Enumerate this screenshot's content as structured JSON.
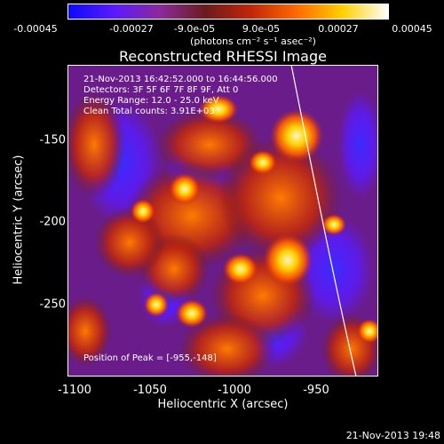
{
  "colorbar": {
    "ticks": [
      "-0.00045",
      "-0.00027",
      "-9.0e-05",
      "9.0e-05",
      "0.00027",
      "0.00045"
    ],
    "units": "(photons cm⁻² s⁻¹ asec⁻²)",
    "colors": [
      "#0a0aff",
      "#5a1aff",
      "#8b2a9a",
      "#6b1c1c",
      "#c2260a",
      "#ff6a00",
      "#ffd000",
      "#ffffff"
    ]
  },
  "title": "Reconstructed RHESSI Image",
  "info": {
    "time_range": "21-Nov-2013 16:42:52.000 to 16:44:56.000",
    "detectors": "Detectors: 3F 5F 6F 7F 8F 9F, Att 0",
    "energy": "Energy Range: 12.0 - 25.0 keV",
    "clean": "Clean    Total counts: 3.91E+03"
  },
  "peak": "Position of Peak = [-955,-148]",
  "xaxis": {
    "label": "Heliocentric X (arcsec)",
    "ticks": [
      "-1100",
      "-1050",
      "-1000",
      "-950"
    ]
  },
  "yaxis": {
    "label": "Heliocentric Y (arcsec)",
    "ticks": [
      "-150",
      "-200",
      "-250"
    ]
  },
  "timestamp": "21-Nov-2013 19:48"
}
